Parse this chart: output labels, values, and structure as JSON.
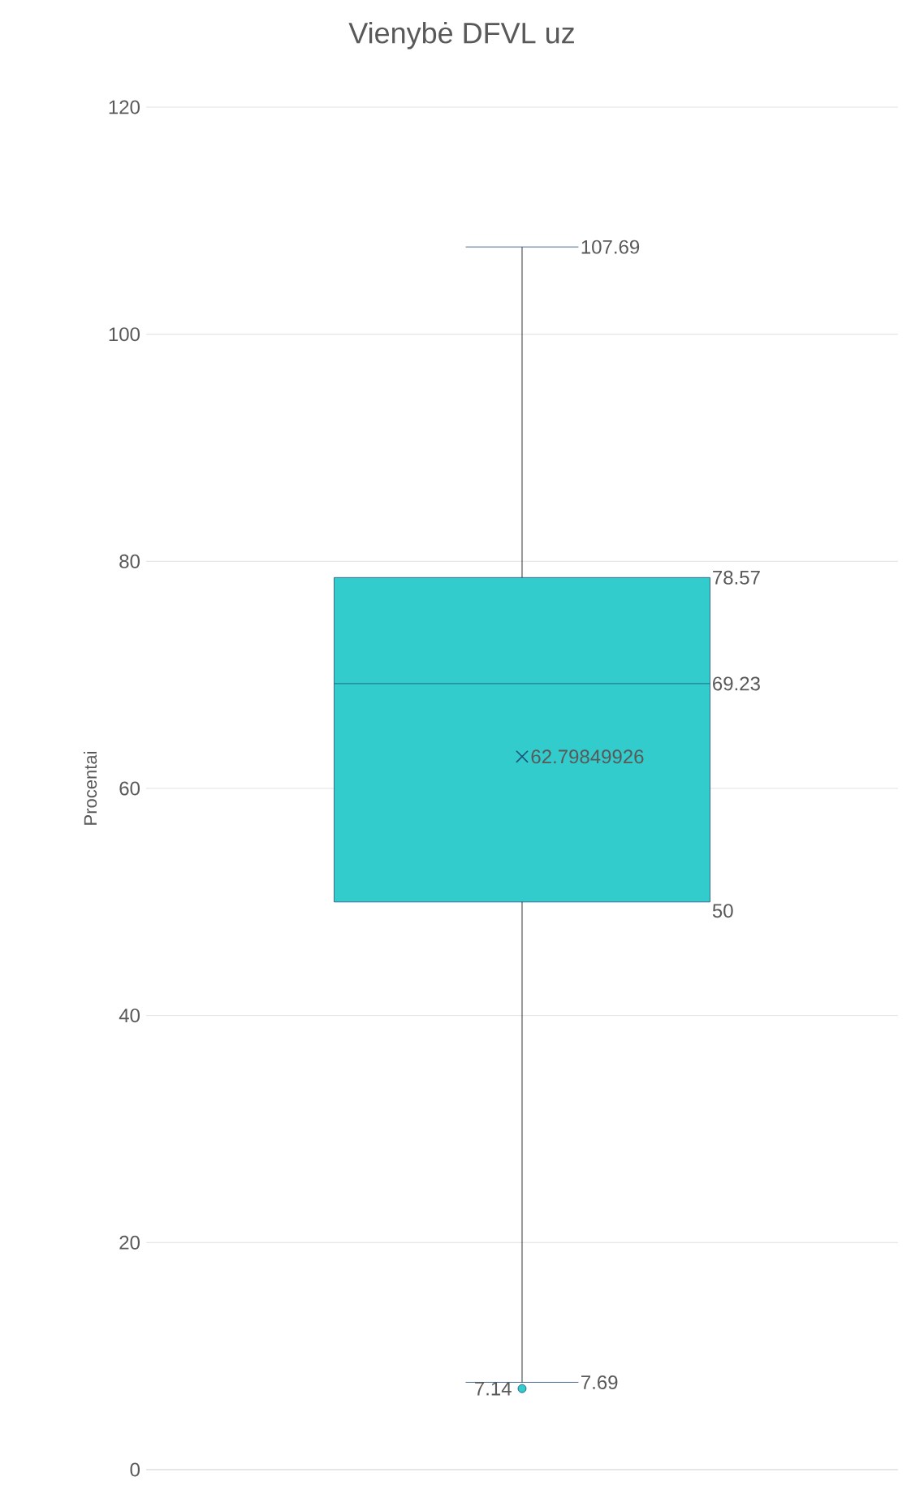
{
  "chart_data": {
    "type": "box",
    "title": "Vienybė DFVL uz",
    "ylabel": "Procentai",
    "categories": [
      null
    ],
    "boxes": [
      {
        "low": 7.69,
        "q1": 50,
        "median": 69.23,
        "q3": 78.57,
        "high": 107.69,
        "mean": 62.79849926,
        "outliers": [
          7.14
        ]
      }
    ],
    "color": "#33cccc",
    "ylim": [
      0,
      120
    ],
    "yticks": [
      0,
      20,
      40,
      60,
      80,
      100,
      120
    ],
    "grid": "y",
    "annotations": [
      "107.69",
      "78.57",
      "69.23",
      "62.79849926",
      "50",
      "7.69",
      "7.14"
    ]
  }
}
